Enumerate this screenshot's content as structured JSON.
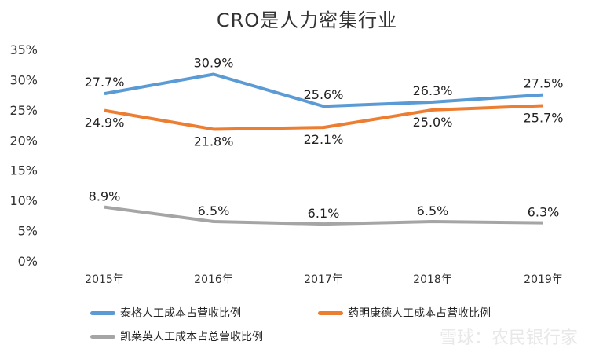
{
  "chart_data": {
    "type": "line",
    "title": "CRO是人力密集行业",
    "categories": [
      "2015年",
      "2016年",
      "2017年",
      "2018年",
      "2019年"
    ],
    "ylim": [
      0,
      35
    ],
    "yticks": [
      "0%",
      "5%",
      "10%",
      "15%",
      "20%",
      "25%",
      "30%",
      "35%"
    ],
    "grid": false,
    "legend_position": "bottom",
    "series": [
      {
        "name": "泰格人工成本占营收比例",
        "color": "#5b9bd5",
        "values": [
          27.7,
          30.9,
          25.6,
          26.3,
          27.5
        ],
        "labels": [
          "27.7%",
          "30.9%",
          "25.6%",
          "26.3%",
          "27.5%"
        ]
      },
      {
        "name": "药明康德人工成本占营收比例",
        "color": "#ed7d31",
        "values": [
          24.9,
          21.8,
          22.1,
          25.0,
          25.7
        ],
        "labels": [
          "24.9%",
          "21.8%",
          "22.1%",
          "25.0%",
          "25.7%"
        ]
      },
      {
        "name": "凯莱英人工成本占总营收比例",
        "color": "#a5a5a5",
        "values": [
          8.9,
          6.5,
          6.1,
          6.5,
          6.3
        ],
        "labels": [
          "8.9%",
          "6.5%",
          "6.1%",
          "6.5%",
          "6.3%"
        ]
      }
    ]
  },
  "watermark": "雪球：农民银行家"
}
